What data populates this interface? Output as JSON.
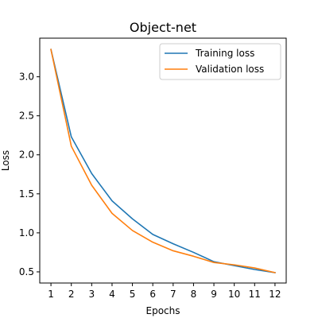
{
  "chart_data": {
    "type": "line",
    "title": "Object-net",
    "xlabel": "Epochs",
    "ylabel": "Loss",
    "x": [
      1,
      2,
      3,
      4,
      5,
      6,
      7,
      8,
      9,
      10,
      11,
      12
    ],
    "xticks": [
      1,
      2,
      3,
      4,
      5,
      6,
      7,
      8,
      9,
      10,
      11,
      12
    ],
    "yticks": [
      0.5,
      1.0,
      1.5,
      2.0,
      2.5,
      3.0
    ],
    "ytick_labels": [
      "0.5",
      "1.0",
      "1.5",
      "2.0",
      "2.5",
      "3.0"
    ],
    "xlim": [
      0.45,
      12.55
    ],
    "ylim": [
      0.357,
      3.495
    ],
    "grid": false,
    "legend_position": "upper right",
    "series": [
      {
        "name": "Training loss",
        "color": "#1f77b4",
        "values": [
          3.35,
          2.23,
          1.76,
          1.41,
          1.18,
          0.98,
          0.86,
          0.75,
          0.63,
          0.58,
          0.53,
          0.49
        ]
      },
      {
        "name": "Validation loss",
        "color": "#ff7f0e",
        "values": [
          3.35,
          2.11,
          1.61,
          1.25,
          1.03,
          0.88,
          0.77,
          0.7,
          0.62,
          0.59,
          0.55,
          0.49
        ]
      }
    ]
  }
}
